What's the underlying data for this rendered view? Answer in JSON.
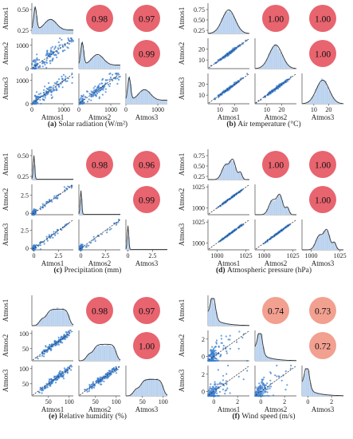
{
  "panels": [
    {
      "id": "a",
      "caption_letter": "(a)",
      "caption_text": "Solar radiation (W/m²)",
      "variables": [
        "Atmos1",
        "Atmos2",
        "Atmos3"
      ],
      "correlations": {
        "r12": "0.98",
        "r13": "0.97",
        "r23": "0.99"
      },
      "correlation_colors": {
        "r12": "#e8646f",
        "r13": "#e8646f",
        "r23": "#e8646f"
      },
      "diag_yticks": [
        "0.50",
        "0.25"
      ],
      "axis_min": 0,
      "axis_max": 1300,
      "ticks": [
        0,
        1000
      ],
      "diag_shape": "skewed",
      "spread": 0.12
    },
    {
      "id": "b",
      "caption_letter": "(b)",
      "caption_text": "Air temperature (°C)",
      "variables": [
        "Atmos1",
        "Atmos2",
        "Atmos3"
      ],
      "correlations": {
        "r12": "1.00",
        "r13": "1.00",
        "r23": "1.00"
      },
      "correlation_colors": {
        "r12": "#e8646f",
        "r13": "#e8646f",
        "r23": "#e8646f"
      },
      "diag_yticks": [
        "0.75",
        "0.50",
        "0.25"
      ],
      "axis_min": 2,
      "axis_max": 30,
      "ticks": [
        10,
        20
      ],
      "diag_shape": "bell",
      "spread": 0.02
    },
    {
      "id": "c",
      "caption_letter": "(c)",
      "caption_text": "Precipitation (mm)",
      "variables": [
        "Atmos1",
        "Atmos2",
        "Atmos3"
      ],
      "correlations": {
        "r12": "0.98",
        "r13": "0.96",
        "r23": "0.99"
      },
      "correlation_colors": {
        "r12": "#e8646f",
        "r13": "#e8646f",
        "r23": "#e8646f"
      },
      "diag_yticks": [
        "0.50",
        "0.25"
      ],
      "axis_min": -0.2,
      "axis_max": 4,
      "ticks": [
        0.0,
        2.5
      ],
      "diag_shape": "spike",
      "spread": 0.05
    },
    {
      "id": "d",
      "caption_letter": "(d)",
      "caption_text": "Atmospheric pressure (hPa)",
      "variables": [
        "Atmos1",
        "Atmos2",
        "Atmos3"
      ],
      "correlations": {
        "r12": "1.00",
        "r13": "1.00",
        "r23": "1.00"
      },
      "correlation_colors": {
        "r12": "#e8646f",
        "r13": "#e8646f",
        "r23": "#e8646f"
      },
      "diag_yticks": [
        "0.75",
        "0.50",
        "0.25"
      ],
      "axis_min": 992,
      "axis_max": 1028,
      "ticks": [
        1000,
        1025
      ],
      "diag_shape": "multi",
      "spread": 0.01
    },
    {
      "id": "e",
      "caption_letter": "(e)",
      "caption_text": "Relative humidity (%)",
      "variables": [
        "Atmos1",
        "Atmos2",
        "Atmos3"
      ],
      "correlations": {
        "r12": "0.98",
        "r13": "0.97",
        "r23": "1.00"
      },
      "correlation_colors": {
        "r12": "#e8646f",
        "r13": "#e8646f",
        "r23": "#e8646f"
      },
      "diag_yticks": [],
      "axis_min": 10,
      "axis_max": 110,
      "ticks": [
        50,
        100
      ],
      "diag_shape": "plateau",
      "spread": 0.06
    },
    {
      "id": "f",
      "caption_letter": "(f)",
      "caption_text": "Wind speed (m/s)",
      "variables": [
        "Atmos1",
        "Atmos2",
        "Atmos3"
      ],
      "correlations": {
        "r12": "0.74",
        "r13": "0.73",
        "r23": "0.72"
      },
      "correlation_colors": {
        "r12": "#f2a090",
        "r13": "#f2a090",
        "r23": "#f2a090"
      },
      "diag_yticks": [],
      "axis_min": -0.5,
      "axis_max": 3,
      "ticks": [
        0,
        2
      ],
      "diag_shape": "decay",
      "spread": 0.35
    }
  ],
  "chart_data": [
    {
      "type": "scatter",
      "title": "(a) Solar radiation (W/m²)",
      "variables": [
        "Atmos1",
        "Atmos2",
        "Atmos3"
      ],
      "pairwise_correlation": {
        "Atmos1-Atmos2": 0.98,
        "Atmos1-Atmos3": 0.97,
        "Atmos2-Atmos3": 0.99
      },
      "ticks": [
        0,
        1000
      ],
      "diag_yticks": [
        0.5,
        0.25
      ]
    },
    {
      "type": "scatter",
      "title": "(b) Air temperature (°C)",
      "variables": [
        "Atmos1",
        "Atmos2",
        "Atmos3"
      ],
      "pairwise_correlation": {
        "Atmos1-Atmos2": 1.0,
        "Atmos1-Atmos3": 1.0,
        "Atmos2-Atmos3": 1.0
      },
      "ticks": [
        10,
        20
      ],
      "diag_yticks": [
        0.75,
        0.5,
        0.25
      ]
    },
    {
      "type": "scatter",
      "title": "(c) Precipitation (mm)",
      "variables": [
        "Atmos1",
        "Atmos2",
        "Atmos3"
      ],
      "pairwise_correlation": {
        "Atmos1-Atmos2": 0.98,
        "Atmos1-Atmos3": 0.96,
        "Atmos2-Atmos3": 0.99
      },
      "ticks": [
        0.0,
        2.5
      ],
      "diag_yticks": [
        0.5,
        0.25
      ]
    },
    {
      "type": "scatter",
      "title": "(d) Atmospheric pressure (hPa)",
      "variables": [
        "Atmos1",
        "Atmos2",
        "Atmos3"
      ],
      "pairwise_correlation": {
        "Atmos1-Atmos2": 1.0,
        "Atmos1-Atmos3": 1.0,
        "Atmos2-Atmos3": 1.0
      },
      "ticks": [
        1000,
        1025
      ],
      "diag_yticks": [
        0.75,
        0.5,
        0.25
      ]
    },
    {
      "type": "scatter",
      "title": "(e) Relative humidity (%)",
      "variables": [
        "Atmos1",
        "Atmos2",
        "Atmos3"
      ],
      "pairwise_correlation": {
        "Atmos1-Atmos2": 0.98,
        "Atmos1-Atmos3": 0.97,
        "Atmos2-Atmos3": 1.0
      },
      "ticks": [
        50,
        100
      ]
    },
    {
      "type": "scatter",
      "title": "(f) Wind speed (m/s)",
      "variables": [
        "Atmos1",
        "Atmos2",
        "Atmos3"
      ],
      "pairwise_correlation": {
        "Atmos1-Atmos2": 0.74,
        "Atmos1-Atmos3": 0.73,
        "Atmos2-Atmos3": 0.72
      },
      "ticks": [
        0,
        2
      ]
    }
  ]
}
